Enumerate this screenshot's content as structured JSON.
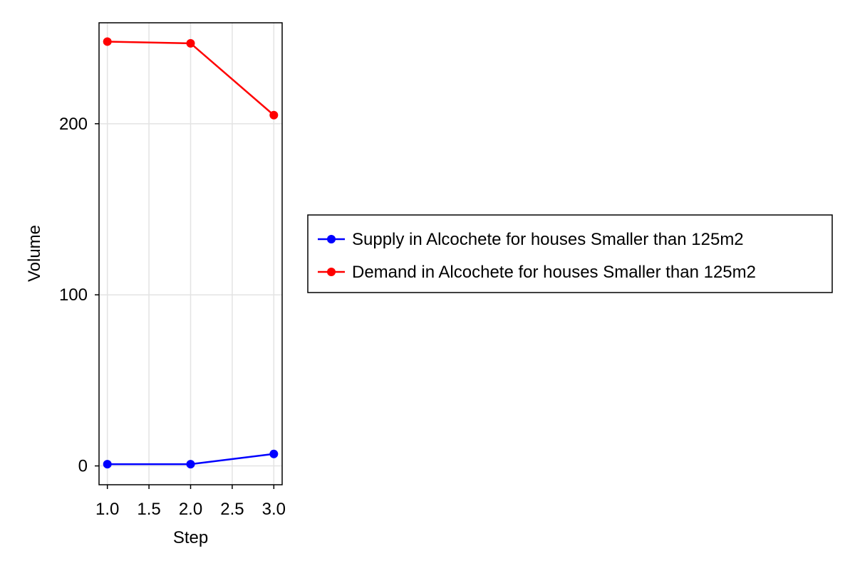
{
  "chart_data": {
    "type": "line",
    "title": "",
    "xlabel": "Step",
    "ylabel": "Volume",
    "x": [
      1.0,
      2.0,
      3.0
    ],
    "xlim": [
      0.9,
      3.1
    ],
    "ylim": [
      -11,
      259
    ],
    "xticks": [
      1.0,
      1.5,
      2.0,
      2.5,
      3.0
    ],
    "xtick_labels": [
      "1.0",
      "1.5",
      "2.0",
      "2.5",
      "3.0"
    ],
    "yticks": [
      0,
      100,
      200
    ],
    "ytick_labels": [
      "0",
      "100",
      "200"
    ],
    "grid": true,
    "legend_position": "right",
    "series": [
      {
        "name": "Supply in Alcochete for houses Smaller than 125m2",
        "color": "#0000ff",
        "values": [
          1,
          1,
          7
        ]
      },
      {
        "name": "Demand in Alcochete for houses Smaller than 125m2",
        "color": "#ff0000",
        "values": [
          248,
          247,
          205
        ]
      }
    ]
  }
}
